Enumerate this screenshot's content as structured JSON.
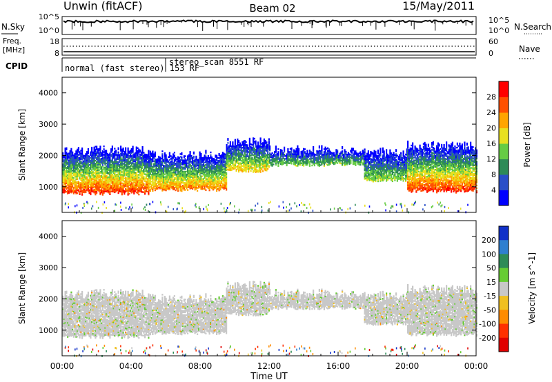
{
  "header": {
    "title": "Unwin (fitACF)",
    "beam": "Beam 02",
    "date": "15/May/2011"
  },
  "status_panels": {
    "nsky_label": "N.Sky",
    "nsearch_label": "N.Search",
    "freq_label_line1": "Freq.",
    "freq_label_line2": "[MHz]",
    "nave_label": "Nave",
    "cpid_label": "CPID",
    "noise_ticks_left": [
      "10^5",
      "10^0"
    ],
    "noise_ticks_right": [
      "10^5",
      "10^0"
    ],
    "freq_ticks_left": [
      "18",
      "8"
    ],
    "nave_ticks_right": [
      "60",
      "0"
    ],
    "cpid_segments": [
      {
        "label": "normal (fast stereo) 153 RF",
        "start_hour": 0
      },
      {
        "label": "stereo_scan 8551 RF",
        "start_hour": 6
      }
    ]
  },
  "chart_data": [
    {
      "type": "heatmap",
      "title": "Power",
      "xlabel": "",
      "ylabel": "Slant Range [km]",
      "x_ticks": [
        "00:00",
        "04:00",
        "08:00",
        "12:00",
        "16:00",
        "20:00",
        "00:00"
      ],
      "x_hours": [
        0,
        4,
        8,
        12,
        16,
        20,
        24
      ],
      "xlim": [
        0,
        24
      ],
      "y_ticks": [
        1000,
        2000,
        3000,
        4000
      ],
      "ylim": [
        180,
        4500
      ],
      "colorbar": {
        "label": "Power [dB]",
        "ticks": [
          4,
          8,
          12,
          16,
          20,
          24,
          28
        ],
        "range": [
          0,
          32
        ],
        "colors": [
          "#0000ff",
          "#2a4fc8",
          "#2e8b57",
          "#66cc44",
          "#e8e020",
          "#ffa500",
          "#ff5000",
          "#ff0000"
        ]
      },
      "echo_bands": [
        {
          "from_hour": 0.0,
          "to_hour": 5.0,
          "lower_km": 780,
          "upper_km": 2150,
          "peak_db": 28
        },
        {
          "from_hour": 5.0,
          "to_hour": 9.5,
          "lower_km": 900,
          "upper_km": 2000,
          "peak_db": 24
        },
        {
          "from_hour": 9.5,
          "to_hour": 12.0,
          "lower_km": 1500,
          "upper_km": 2400,
          "peak_db": 20
        },
        {
          "from_hour": 12.0,
          "to_hour": 17.5,
          "lower_km": 1700,
          "upper_km": 2150,
          "peak_db": 14
        },
        {
          "from_hour": 17.5,
          "to_hour": 20.0,
          "lower_km": 1200,
          "upper_km": 2100,
          "peak_db": 16
        },
        {
          "from_hour": 20.0,
          "to_hour": 24.0,
          "lower_km": 850,
          "upper_km": 2300,
          "peak_db": 28
        }
      ]
    },
    {
      "type": "heatmap",
      "title": "Velocity",
      "xlabel": "Time UT",
      "ylabel": "Slant Range [km]",
      "x_ticks": [
        "00:00",
        "04:00",
        "08:00",
        "12:00",
        "16:00",
        "20:00",
        "00:00"
      ],
      "x_hours": [
        0,
        4,
        8,
        12,
        16,
        20,
        24
      ],
      "xlim": [
        0,
        24
      ],
      "y_ticks": [
        1000,
        2000,
        3000,
        4000
      ],
      "ylim": [
        180,
        4500
      ],
      "colorbar": {
        "label": "Velocity [m s^-1]",
        "ticks": [
          "200",
          "100",
          "50",
          "15",
          "-15",
          "-50",
          "-100",
          "-200"
        ],
        "colors": [
          "#1030c8",
          "#2f7fd0",
          "#2e8b57",
          "#66cc33",
          "#c8c8c8",
          "#f0c020",
          "#ff8c00",
          "#ff3000",
          "#e00000"
        ]
      },
      "dominant_velocity_class": "-15 to 15 (ground scatter)"
    }
  ]
}
